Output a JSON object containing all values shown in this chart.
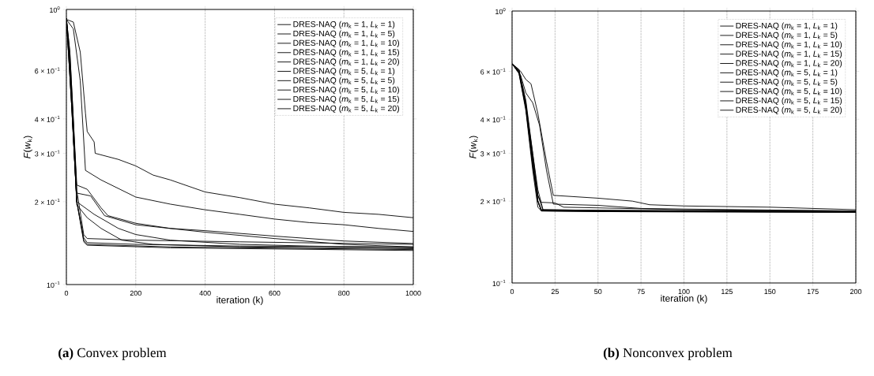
{
  "chart_data": [
    {
      "type": "line",
      "xlabel": "iteration (k)",
      "ylabel": "*F*(*w*$_{k}$)",
      "annotations": [
        "**(a)** Convex problem"
      ],
      "log": true,
      "grid": "x",
      "legend": "top right",
      "xlim": [
        0,
        1000
      ],
      "xticks": [
        0,
        200,
        400,
        600,
        800,
        1000
      ],
      "ylim": [
        0.1,
        1
      ],
      "yticks": [
        {
          "value": 0.1,
          "label": "10$^{−1}$"
        },
        {
          "value": 0.2,
          "label": "2 × 10$^{−1}$"
        },
        {
          "value": 0.3,
          "label": "3 × 10$^{−1}$"
        },
        {
          "value": 0.4,
          "label": "4 × 10$^{−1}$"
        },
        {
          "value": 0.6,
          "label": "6 × 10$^{−1}$"
        },
        {
          "value": 1,
          "label": "10$^{0}$"
        }
      ],
      "series": [
        {
          "name": "DRES-NAQ (*m*$_{k}$ = 1, *L*$_{k}$ = 1)",
          "color": "#000000",
          "x": [
            0,
            20,
            40,
            55,
            60,
            80,
            83,
            150,
            200,
            250,
            300,
            400,
            500,
            600,
            700,
            800,
            900,
            1000
          ],
          "values": [
            0.92,
            0.9,
            0.7,
            0.42,
            0.36,
            0.33,
            0.3,
            0.285,
            0.27,
            0.25,
            0.24,
            0.217,
            0.207,
            0.196,
            0.19,
            0.183,
            0.18,
            0.175
          ]
        },
        {
          "name": "DRES-NAQ (*m*$_{k}$ = 1, *L*$_{k}$ = 5)",
          "color": "#000000",
          "x": [
            0,
            20,
            40,
            55,
            100,
            200,
            300,
            400,
            500,
            600,
            700,
            800,
            900,
            1000
          ],
          "values": [
            0.92,
            0.85,
            0.55,
            0.26,
            0.24,
            0.208,
            0.196,
            0.187,
            0.18,
            0.173,
            0.168,
            0.165,
            0.16,
            0.156
          ]
        },
        {
          "name": "DRES-NAQ (*m*$_{k}$ = 1, *L*$_{k}$ = 10)",
          "color": "#000000",
          "x": [
            0,
            10,
            20,
            30,
            60,
            100,
            120,
            200,
            300,
            400,
            600,
            800,
            1000
          ],
          "values": [
            0.93,
            0.7,
            0.4,
            0.23,
            0.222,
            0.19,
            0.178,
            0.167,
            0.16,
            0.157,
            0.15,
            0.144,
            0.141
          ]
        },
        {
          "name": "DRES-NAQ (*m*$_{k}$ = 1, *L*$_{k}$ = 15)",
          "color": "#000000",
          "x": [
            0,
            10,
            20,
            30,
            70,
            110,
            200,
            400,
            600,
            800,
            1000
          ],
          "values": [
            0.93,
            0.7,
            0.4,
            0.215,
            0.21,
            0.178,
            0.165,
            0.155,
            0.147,
            0.14,
            0.137
          ]
        },
        {
          "name": "DRES-NAQ (*m*$_{k}$ = 1, *L*$_{k}$ = 20)",
          "color": "#000000",
          "x": [
            0,
            10,
            20,
            30,
            80,
            150,
            200,
            300,
            500,
            700,
            1000
          ],
          "values": [
            0.93,
            0.65,
            0.35,
            0.2,
            0.18,
            0.16,
            0.152,
            0.145,
            0.14,
            0.138,
            0.136
          ]
        },
        {
          "name": "DRES-NAQ (*m*$_{k}$ = 5, *L*$_{k}$ = 1)",
          "color": "#000000",
          "x": [
            0,
            10,
            20,
            30,
            60,
            100,
            160,
            250,
            500,
            1000
          ],
          "values": [
            0.93,
            0.65,
            0.35,
            0.195,
            0.175,
            0.16,
            0.145,
            0.14,
            0.137,
            0.135
          ]
        },
        {
          "name": "DRES-NAQ (*m*$_{k}$ = 5, *L*$_{k}$ = 5)",
          "color": "#000000",
          "x": [
            0,
            15,
            30,
            50,
            60,
            200,
            500,
            1000
          ],
          "values": [
            0.93,
            0.5,
            0.22,
            0.152,
            0.147,
            0.145,
            0.143,
            0.14
          ]
        },
        {
          "name": "DRES-NAQ (*m*$_{k}$ = 5, *L*$_{k}$ = 10)",
          "color": "#000000",
          "x": [
            0,
            15,
            30,
            50,
            60,
            200,
            500,
            1000
          ],
          "values": [
            0.93,
            0.45,
            0.2,
            0.148,
            0.142,
            0.14,
            0.138,
            0.137
          ]
        },
        {
          "name": "DRES-NAQ (*m*$_{k}$ = 5, *L*$_{k}$ = 15)",
          "color": "#000000",
          "x": [
            0,
            15,
            30,
            50,
            60,
            300,
            1000
          ],
          "values": [
            0.93,
            0.45,
            0.2,
            0.145,
            0.14,
            0.137,
            0.134
          ]
        },
        {
          "name": "DRES-NAQ (*m*$_{k}$ = 5, *L*$_{k}$ = 20)",
          "color": "#000000",
          "x": [
            0,
            15,
            30,
            50,
            60,
            300,
            1000
          ],
          "values": [
            0.93,
            0.45,
            0.2,
            0.143,
            0.139,
            0.136,
            0.133
          ]
        }
      ]
    },
    {
      "type": "line",
      "xlabel": "iteration (k)",
      "ylabel": "*F*(*w*$_{k}$)",
      "annotations": [
        "**(b)** Nonconvex problem"
      ],
      "log": true,
      "grid": "x",
      "legend": "top right",
      "xlim": [
        0,
        200
      ],
      "xticks": [
        0,
        25,
        50,
        75,
        100,
        125,
        150,
        175,
        200
      ],
      "ylim": [
        0.1,
        1
      ],
      "yticks": [
        {
          "value": 0.1,
          "label": "10$^{−1}$"
        },
        {
          "value": 0.2,
          "label": "2 × 10$^{−1}$"
        },
        {
          "value": 0.3,
          "label": "3 × 10$^{−1}$"
        },
        {
          "value": 0.4,
          "label": "4 × 10$^{−1}$"
        },
        {
          "value": 0.6,
          "label": "6 × 10$^{−1}$"
        },
        {
          "value": 1,
          "label": "10$^{0}$"
        }
      ],
      "series": [
        {
          "name": "DRES-NAQ (*m*$_{k}$ = 1, *L*$_{k}$ = 1)",
          "color": "#000000",
          "x": [
            0,
            5,
            8,
            11,
            15,
            20,
            24,
            50,
            70,
            80,
            100,
            150,
            200
          ],
          "values": [
            0.64,
            0.6,
            0.56,
            0.54,
            0.42,
            0.28,
            0.21,
            0.205,
            0.2,
            0.194,
            0.192,
            0.19,
            0.186
          ]
        },
        {
          "name": "DRES-NAQ (*m*$_{k}$ = 1, *L*$_{k}$ = 5)",
          "color": "#000000",
          "x": [
            0,
            5,
            8,
            12,
            16,
            20,
            24,
            50,
            75,
            100,
            200
          ],
          "values": [
            0.64,
            0.58,
            0.5,
            0.46,
            0.38,
            0.26,
            0.195,
            0.193,
            0.188,
            0.187,
            0.184
          ]
        },
        {
          "name": "DRES-NAQ (*m*$_{k}$ = 1, *L*$_{k}$ = 10)",
          "color": "#000000",
          "x": [
            0,
            4,
            8,
            12,
            15,
            17,
            25,
            30,
            100,
            200
          ],
          "values": [
            0.64,
            0.6,
            0.45,
            0.3,
            0.21,
            0.198,
            0.197,
            0.19,
            0.186,
            0.184
          ]
        },
        {
          "name": "DRES-NAQ (*m*$_{k}$ = 1, *L*$_{k}$ = 15)",
          "color": "#000000",
          "x": [
            0,
            4,
            8,
            12,
            15,
            17,
            50,
            200
          ],
          "values": [
            0.64,
            0.6,
            0.45,
            0.28,
            0.2,
            0.186,
            0.185,
            0.183
          ]
        },
        {
          "name": "DRES-NAQ (*m*$_{k}$ = 1, *L*$_{k}$ = 20)",
          "color": "#000000",
          "x": [
            0,
            4,
            8,
            12,
            15,
            17,
            50,
            200
          ],
          "values": [
            0.64,
            0.59,
            0.44,
            0.27,
            0.2,
            0.185,
            0.184,
            0.183
          ]
        },
        {
          "name": "DRES-NAQ (*m*$_{k}$ = 5, *L*$_{k}$ = 1)",
          "color": "#000000",
          "x": [
            0,
            4,
            8,
            12,
            15,
            18,
            50,
            200
          ],
          "values": [
            0.64,
            0.6,
            0.46,
            0.29,
            0.21,
            0.185,
            0.184,
            0.182
          ]
        },
        {
          "name": "DRES-NAQ (*m*$_{k}$ = 5, *L*$_{k}$ = 5)",
          "color": "#000000",
          "x": [
            0,
            4,
            8,
            12,
            15,
            18,
            50,
            200
          ],
          "values": [
            0.64,
            0.61,
            0.47,
            0.3,
            0.22,
            0.186,
            0.185,
            0.183
          ]
        },
        {
          "name": "DRES-NAQ (*m*$_{k}$ = 5, *L*$_{k}$ = 10)",
          "color": "#000000",
          "x": [
            0,
            4,
            8,
            12,
            15,
            17,
            50,
            200
          ],
          "values": [
            0.64,
            0.6,
            0.45,
            0.28,
            0.2,
            0.184,
            0.183,
            0.182
          ]
        },
        {
          "name": "DRES-NAQ (*m*$_{k}$ = 5, *L*$_{k}$ = 15)",
          "color": "#000000",
          "x": [
            0,
            4,
            8,
            12,
            15,
            17,
            50,
            200
          ],
          "values": [
            0.64,
            0.59,
            0.43,
            0.26,
            0.19,
            0.184,
            0.183,
            0.182
          ]
        },
        {
          "name": "DRES-NAQ (*m*$_{k}$ = 5, *L*$_{k}$ = 20)",
          "color": "#000000",
          "x": [
            0,
            4,
            8,
            12,
            15,
            17,
            50,
            200
          ],
          "values": [
            0.64,
            0.6,
            0.44,
            0.27,
            0.2,
            0.185,
            0.184,
            0.183
          ]
        }
      ]
    }
  ]
}
